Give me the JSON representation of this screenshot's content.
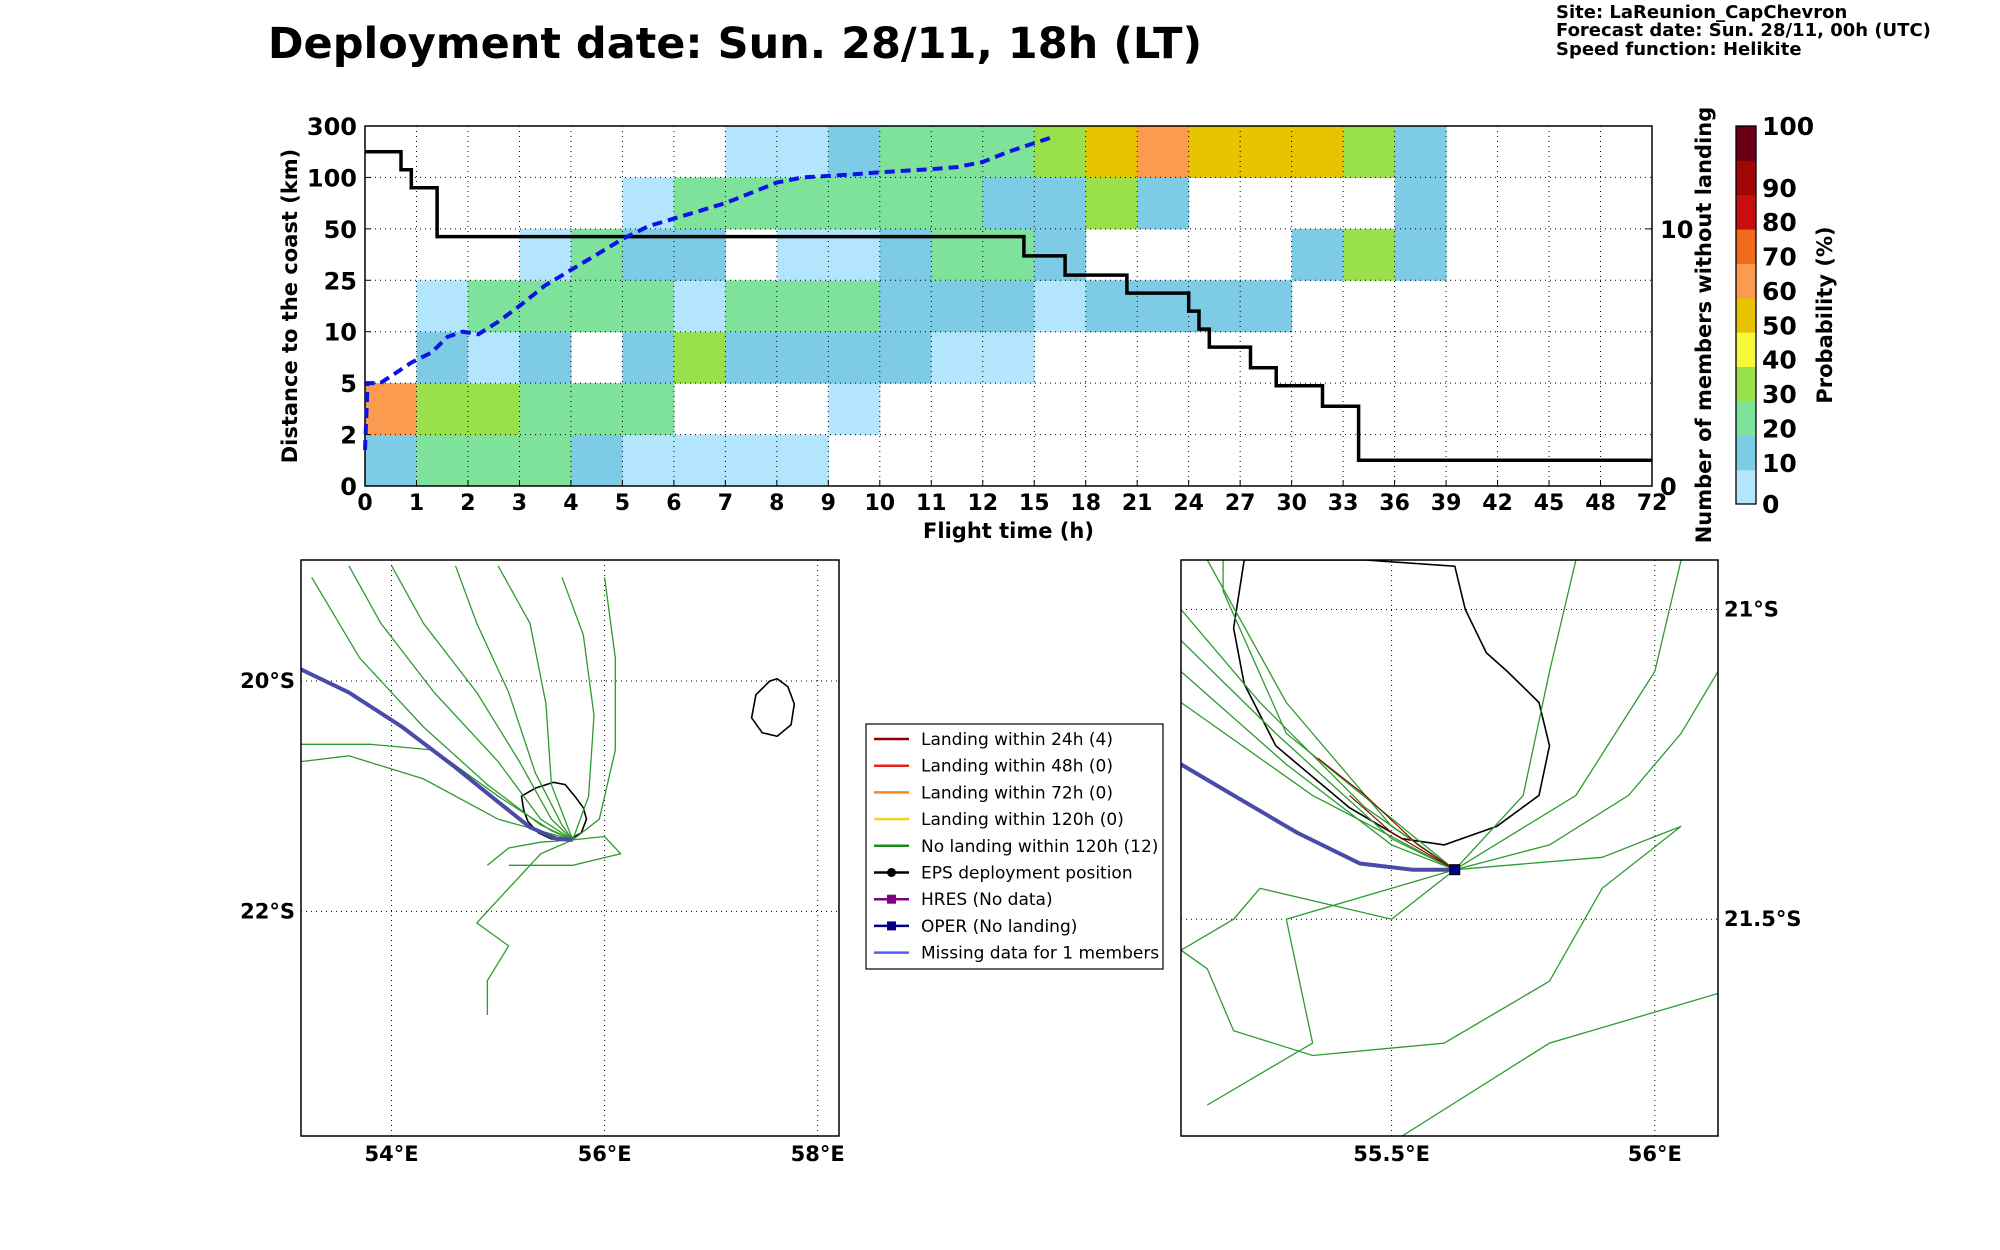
{
  "title": "Deployment date: Sun. 28/11, 18h (LT)",
  "info": {
    "site": "Site: LaReunion_CapChevron",
    "forecast": "Forecast date: Sun. 28/11, 00h (UTC)",
    "speed": "Speed function: Helikite"
  },
  "chart_data": [
    {
      "type": "heatmap",
      "xlabel": "Flight time (h)",
      "ylabel": "Distance to the coast (km)",
      "y2label": "Number of members without landing",
      "x_ticks": [
        "0",
        "1",
        "2",
        "3",
        "4",
        "5",
        "6",
        "7",
        "8",
        "9",
        "10",
        "11",
        "12",
        "15",
        "18",
        "21",
        "24",
        "27",
        "30",
        "33",
        "36",
        "39",
        "42",
        "45",
        "48",
        "72"
      ],
      "y_ticks": [
        "0",
        "2",
        "5",
        "10",
        "25",
        "50",
        "100",
        "300"
      ],
      "y2_ticks": [
        "0",
        "10"
      ],
      "y2_range": [
        0,
        14
      ],
      "colorbar_label": "Probability (%)",
      "colorbar_ticks": [
        "0",
        "10",
        "20",
        "30",
        "40",
        "50",
        "60",
        "70",
        "80",
        "90",
        "100"
      ],
      "colorbar_colors": [
        "#b3e5fc",
        "#7ecbe5",
        "#7fe29a",
        "#99e04a",
        "#f8f83a",
        "#e8c400",
        "#fa9b50",
        "#f06a1c",
        "#c80e0e",
        "#a20707",
        "#6a0014"
      ],
      "grid": true,
      "bins": [
        [
          1,
          2,
          2,
          2,
          1,
          0,
          0,
          0,
          0,
          null,
          null,
          null,
          null,
          null,
          null,
          null,
          null,
          null,
          null,
          null,
          null,
          null,
          null,
          null,
          null
        ],
        [
          6,
          3,
          3,
          2,
          2,
          2,
          null,
          null,
          null,
          0,
          null,
          null,
          null,
          null,
          null,
          null,
          null,
          null,
          null,
          null,
          null,
          null,
          null,
          null,
          null
        ],
        [
          null,
          1,
          0,
          1,
          null,
          1,
          3,
          1,
          1,
          1,
          1,
          0,
          0,
          null,
          null,
          null,
          null,
          null,
          null,
          null,
          null,
          null,
          null,
          null,
          null
        ],
        [
          null,
          0,
          2,
          2,
          2,
          2,
          0,
          2,
          2,
          2,
          1,
          1,
          1,
          0,
          1,
          1,
          1,
          1,
          null,
          null,
          null,
          null,
          null,
          null,
          null
        ],
        [
          null,
          null,
          null,
          0,
          2,
          1,
          1,
          null,
          0,
          0,
          1,
          2,
          2,
          1,
          null,
          null,
          null,
          null,
          1,
          3,
          1,
          null,
          null,
          null,
          null
        ],
        [
          null,
          null,
          null,
          null,
          null,
          0,
          2,
          2,
          2,
          2,
          2,
          2,
          1,
          1,
          3,
          1,
          null,
          null,
          null,
          null,
          1,
          null,
          null,
          null,
          null
        ],
        [
          null,
          null,
          null,
          null,
          null,
          null,
          null,
          0,
          0,
          1,
          2,
          2,
          2,
          3,
          5,
          6,
          5,
          5,
          5,
          3,
          1,
          null,
          null,
          null,
          null
        ]
      ],
      "series": [
        {
          "name": "",
          "style": "solid black step",
          "axis": "right",
          "points": [
            [
              0,
              13.0
            ],
            [
              0.7,
              13.0
            ],
            [
              0.7,
              12.3
            ],
            [
              0.9,
              12.3
            ],
            [
              0.9,
              11.6
            ],
            [
              1.4,
              11.6
            ],
            [
              1.4,
              9.7
            ],
            [
              12.8,
              9.7
            ],
            [
              12.8,
              8.95
            ],
            [
              13.6,
              8.95
            ],
            [
              13.6,
              8.2
            ],
            [
              14.8,
              8.2
            ],
            [
              14.8,
              7.5
            ],
            [
              16.0,
              7.5
            ],
            [
              16.0,
              6.8
            ],
            [
              16.2,
              6.8
            ],
            [
              16.2,
              6.1
            ],
            [
              16.4,
              6.1
            ],
            [
              16.4,
              5.4
            ],
            [
              17.2,
              5.4
            ],
            [
              17.2,
              4.6
            ],
            [
              17.7,
              4.6
            ],
            [
              17.7,
              3.9
            ],
            [
              18.6,
              3.9
            ],
            [
              18.6,
              3.1
            ],
            [
              19.3,
              3.1
            ],
            [
              19.3,
              1.0
            ],
            [
              25,
              1.0
            ]
          ]
        },
        {
          "name": "",
          "style": "dashed blue",
          "axis": "left",
          "points": [
            [
              0,
              0.7
            ],
            [
              0.05,
              2.0
            ],
            [
              0.3,
              2.0
            ],
            [
              0.6,
              2.2
            ],
            [
              0.9,
              2.4
            ],
            [
              1.3,
              2.6
            ],
            [
              1.6,
              2.9
            ],
            [
              1.9,
              3.0
            ],
            [
              2.2,
              2.95
            ],
            [
              2.6,
              3.2
            ],
            [
              3,
              3.5
            ],
            [
              3.5,
              3.9
            ],
            [
              4,
              4.2
            ],
            [
              4.5,
              4.5
            ],
            [
              5,
              4.8
            ],
            [
              5.5,
              5.05
            ],
            [
              6,
              5.2
            ],
            [
              6.5,
              5.35
            ],
            [
              7,
              5.5
            ],
            [
              7.5,
              5.7
            ],
            [
              8,
              5.9
            ],
            [
              8.5,
              6.0
            ],
            [
              9,
              6.03
            ],
            [
              9.5,
              6.06
            ],
            [
              10,
              6.1
            ],
            [
              10.5,
              6.13
            ],
            [
              11,
              6.16
            ],
            [
              11.5,
              6.2
            ],
            [
              12,
              6.3
            ],
            [
              12.5,
              6.5
            ],
            [
              13.4,
              6.8
            ]
          ]
        }
      ]
    },
    {
      "type": "map",
      "x_ticks": [
        "54°E",
        "56°E",
        "58°E"
      ],
      "y_ticks": [
        "20°S",
        "22°S"
      ],
      "lon_range": [
        53.15,
        58.2
      ],
      "lat_range": [
        -23.95,
        -18.95
      ]
    },
    {
      "type": "map",
      "x_ticks": [
        "55.5°E",
        "56°E"
      ],
      "y_ticks": [
        "21°S",
        "21.5°S"
      ],
      "lon_range": [
        55.1,
        56.12
      ],
      "lat_range": [
        -21.85,
        -20.92
      ]
    }
  ],
  "legend": {
    "items": [
      {
        "label": "Landing within 24h (4)",
        "color": "#8b0000",
        "marker": "none"
      },
      {
        "label": "Landing within 48h (0)",
        "color": "#e8231b",
        "marker": "none"
      },
      {
        "label": "Landing within 72h (0)",
        "color": "#f58a1f",
        "marker": "none"
      },
      {
        "label": "Landing within 120h (0)",
        "color": "#f2d21b",
        "marker": "none"
      },
      {
        "label": "No landing within 120h (12)",
        "color": "#1a8c1a",
        "marker": "none"
      },
      {
        "label": "EPS deployment position",
        "color": "#000000",
        "marker": "circle"
      },
      {
        "label": "HRES (No data)",
        "color": "#800080",
        "marker": "square"
      },
      {
        "label": "OPER (No landing)",
        "color": "#000080",
        "marker": "square"
      },
      {
        "label": "Missing data for 1 members",
        "color": "#5a5aff",
        "marker": "none"
      }
    ]
  },
  "colors": {
    "trajectory": "#2e9a2e",
    "oper_track": "#4a4aa8",
    "step_line": "#000000",
    "dashed_line": "#0a14e6"
  }
}
